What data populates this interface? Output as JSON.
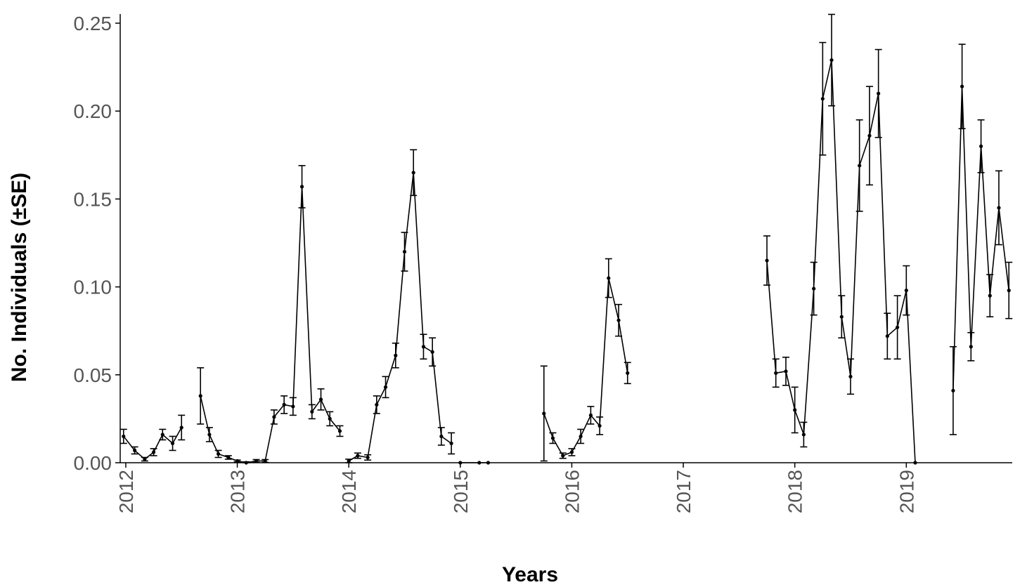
{
  "chart_data": {
    "type": "line",
    "title": "",
    "xlabel": "Years",
    "ylabel": "No. Individuals (±SE)",
    "xlim": [
      2011.95,
      2019.95
    ],
    "ylim": [
      0,
      0.255
    ],
    "x_ticks": [
      2012,
      2013,
      2014,
      2015,
      2016,
      2017,
      2018,
      2019
    ],
    "x_tick_labels": [
      "2012",
      "2013",
      "2014",
      "2015",
      "2016",
      "2017",
      "2018",
      "2019"
    ],
    "y_ticks": [
      0,
      0.05,
      0.1,
      0.15,
      0.2,
      0.25
    ],
    "y_tick_labels": [
      "0.00",
      "0.05",
      "0.10",
      "0.15",
      "0.20",
      "0.25"
    ],
    "grid": false,
    "legend": "none",
    "series": [
      {
        "segments": [
          {
            "x": [
              2011.98,
              2012.08,
              2012.17,
              2012.25,
              2012.33,
              2012.42,
              2012.5
            ],
            "y": [
              0.015,
              0.007,
              0.002,
              0.006,
              0.016,
              0.011,
              0.02
            ],
            "se": [
              0.004,
              0.002,
              0.001,
              0.002,
              0.003,
              0.004,
              0.007
            ]
          },
          {
            "x": [
              2012.67,
              2012.75,
              2012.83,
              2012.92,
              2013.0,
              2013.08,
              2013.17,
              2013.25,
              2013.33,
              2013.42,
              2013.5,
              2013.58,
              2013.67,
              2013.75,
              2013.83,
              2013.92
            ],
            "y": [
              0.038,
              0.016,
              0.005,
              0.003,
              0.001,
              0.0,
              0.001,
              0.001,
              0.026,
              0.033,
              0.032,
              0.157,
              0.029,
              0.036,
              0.025,
              0.018
            ],
            "se": [
              0.016,
              0.004,
              0.002,
              0.001,
              0.0005,
              0.0005,
              0.0008,
              0.0008,
              0.004,
              0.005,
              0.005,
              0.012,
              0.004,
              0.006,
              0.004,
              0.003
            ]
          },
          {
            "x": [
              2014.0,
              2014.08,
              2014.17,
              2014.25,
              2014.33,
              2014.42,
              2014.5,
              2014.58,
              2014.67,
              2014.75,
              2014.83,
              2014.92
            ],
            "y": [
              0.001,
              0.004,
              0.003,
              0.033,
              0.043,
              0.061,
              0.12,
              0.165,
              0.066,
              0.063,
              0.015,
              0.011
            ],
            "se": [
              0.001,
              0.0015,
              0.0015,
              0.005,
              0.006,
              0.007,
              0.011,
              0.013,
              0.007,
              0.008,
              0.005,
              0.006
            ]
          },
          {
            "x": [
              2015.0,
              2015.17,
              2015.25
            ],
            "y": [
              0.0,
              0.0,
              0.0
            ],
            "se": [
              0.0,
              0.0,
              0.0
            ]
          },
          {
            "x": [
              2015.75,
              2015.83,
              2015.92,
              2016.0,
              2016.08,
              2016.17,
              2016.25,
              2016.33,
              2016.42,
              2016.5
            ],
            "y": [
              0.028,
              0.014,
              0.004,
              0.006,
              0.015,
              0.027,
              0.021,
              0.105,
              0.081,
              0.051
            ],
            "se": [
              0.027,
              0.003,
              0.0015,
              0.002,
              0.004,
              0.005,
              0.005,
              0.011,
              0.009,
              0.006
            ]
          },
          {
            "x": [
              2017.75,
              2017.83,
              2017.92,
              2018.0,
              2018.08,
              2018.17,
              2018.25,
              2018.33,
              2018.42,
              2018.5,
              2018.58,
              2018.67,
              2018.75,
              2018.83,
              2018.92,
              2019.0,
              2019.08
            ],
            "y": [
              0.115,
              0.051,
              0.052,
              0.03,
              0.016,
              0.099,
              0.207,
              0.229,
              0.083,
              0.049,
              0.169,
              0.186,
              0.21,
              0.072,
              0.077,
              0.098,
              0.0
            ],
            "se": [
              0.014,
              0.008,
              0.008,
              0.013,
              0.007,
              0.015,
              0.032,
              0.026,
              0.012,
              0.01,
              0.026,
              0.028,
              0.025,
              0.013,
              0.018,
              0.014,
              0.0
            ]
          },
          {
            "x": [
              2019.42,
              2019.5,
              2019.58,
              2019.67,
              2019.75,
              2019.83,
              2019.92
            ],
            "y": [
              0.041,
              0.214,
              0.066,
              0.18,
              0.095,
              0.145,
              0.098
            ],
            "se": [
              0.025,
              0.024,
              0.008,
              0.015,
              0.012,
              0.021,
              0.016
            ]
          }
        ]
      }
    ]
  }
}
